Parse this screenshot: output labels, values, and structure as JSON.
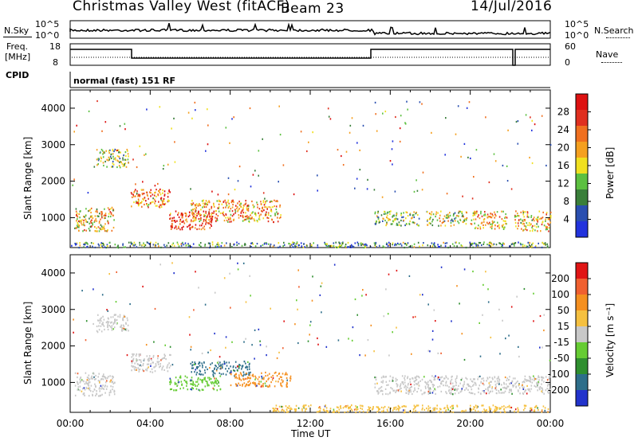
{
  "header": {
    "title": "Christmas Valley West (fitACF)",
    "beam": "Beam 23",
    "date": "14/Jul/2016"
  },
  "noise_panel": {
    "left_label": "N.Sky",
    "right_label": "N.Search",
    "left_ticks": [
      "10^5",
      "10^0"
    ],
    "right_ticks": [
      "10^5",
      "10^0"
    ]
  },
  "freq_panel": {
    "left_label_line1": "Freq.",
    "left_label_line2": "[MHz]",
    "left_ticks": [
      "18",
      "8"
    ],
    "right_label": "Nave",
    "right_ticks": [
      "60",
      "0"
    ]
  },
  "cpid_panel": {
    "label": "CPID",
    "text": "normal (fast) 151 RF"
  },
  "chart_data": [
    {
      "type": "heatmap",
      "name": "power",
      "ylabel": "Slant Range [km]",
      "yticks": [
        1000,
        2000,
        3000,
        4000
      ],
      "ylim": [
        180,
        4500
      ],
      "xlim": [
        0,
        24
      ],
      "colorbar": {
        "label": "Power [dB]",
        "ticks": [
          "28",
          "24",
          "20",
          "16",
          "12",
          "8",
          "4"
        ],
        "colors": [
          "#2233dd",
          "#2a4fb0",
          "#3a7f3a",
          "#5cc040",
          "#f0e020",
          "#f5a020",
          "#f07020",
          "#e03020",
          "#dd1111"
        ]
      },
      "scatter_regions": [
        {
          "t0": 0.2,
          "t1": 2.2,
          "r0": 650,
          "r1": 1300,
          "level": 0.55
        },
        {
          "t0": 1.3,
          "t1": 2.9,
          "r0": 2400,
          "r1": 2900,
          "level": 0.4
        },
        {
          "t0": 3.0,
          "t1": 5.0,
          "r0": 1300,
          "r1": 1800,
          "level": 0.7
        },
        {
          "t0": 4.9,
          "t1": 7.2,
          "r0": 700,
          "r1": 1200,
          "level": 0.8
        },
        {
          "t0": 6.0,
          "t1": 10.5,
          "r0": 900,
          "r1": 1500,
          "level": 0.65
        },
        {
          "t0": 15.2,
          "t1": 17.5,
          "r0": 800,
          "r1": 1200,
          "level": 0.4
        },
        {
          "t0": 17.8,
          "t1": 19.8,
          "r0": 800,
          "r1": 1200,
          "level": 0.45
        },
        {
          "t0": 20.0,
          "t1": 21.8,
          "r0": 700,
          "r1": 1200,
          "level": 0.6
        },
        {
          "t0": 22.2,
          "t1": 24.0,
          "r0": 650,
          "r1": 1200,
          "level": 0.6
        },
        {
          "t0": 0,
          "t1": 24,
          "r0": 200,
          "r1": 350,
          "level": 0.3
        }
      ]
    },
    {
      "type": "heatmap",
      "name": "velocity",
      "ylabel": "Slant Range [km]",
      "yticks": [
        1000,
        2000,
        3000,
        4000
      ],
      "ylim": [
        180,
        4500
      ],
      "xlim": [
        0,
        24
      ],
      "xticks": [
        "00:00",
        "04:00",
        "08:00",
        "12:00",
        "16:00",
        "20:00",
        "00:00"
      ],
      "xlabel": "Time UT",
      "colorbar": {
        "label": "Velocity [m s⁻¹]",
        "ticks": [
          "200",
          "100",
          "50",
          "15",
          "-15",
          "-50",
          "-100",
          "-200"
        ],
        "colors": [
          "#2233cc",
          "#2e6e8a",
          "#2f8f2f",
          "#66cc33",
          "#c8c8c8",
          "#f5c040",
          "#f59020",
          "#f06030",
          "#e01515"
        ]
      },
      "scatter_regions": [
        {
          "t0": 0.2,
          "t1": 2.2,
          "r0": 650,
          "r1": 1300,
          "color": "#c8c8c8"
        },
        {
          "t0": 1.3,
          "t1": 2.9,
          "r0": 2400,
          "r1": 2900,
          "color": "#c8c8c8"
        },
        {
          "t0": 3.0,
          "t1": 5.0,
          "r0": 1300,
          "r1": 1800,
          "color": "#c8c8c8"
        },
        {
          "t0": 4.9,
          "t1": 7.5,
          "r0": 800,
          "r1": 1200,
          "color": "#66cc33"
        },
        {
          "t0": 6.0,
          "t1": 9.0,
          "r0": 1200,
          "r1": 1600,
          "color": "#2e6e8a"
        },
        {
          "t0": 8.0,
          "t1": 11.0,
          "r0": 900,
          "r1": 1300,
          "color": "#f59020"
        },
        {
          "t0": 15.2,
          "t1": 24.0,
          "r0": 700,
          "r1": 1200,
          "color": "#c8c8c8"
        },
        {
          "t0": 10.0,
          "t1": 24.0,
          "r0": 200,
          "r1": 400,
          "color": "#f5c040"
        }
      ]
    }
  ]
}
